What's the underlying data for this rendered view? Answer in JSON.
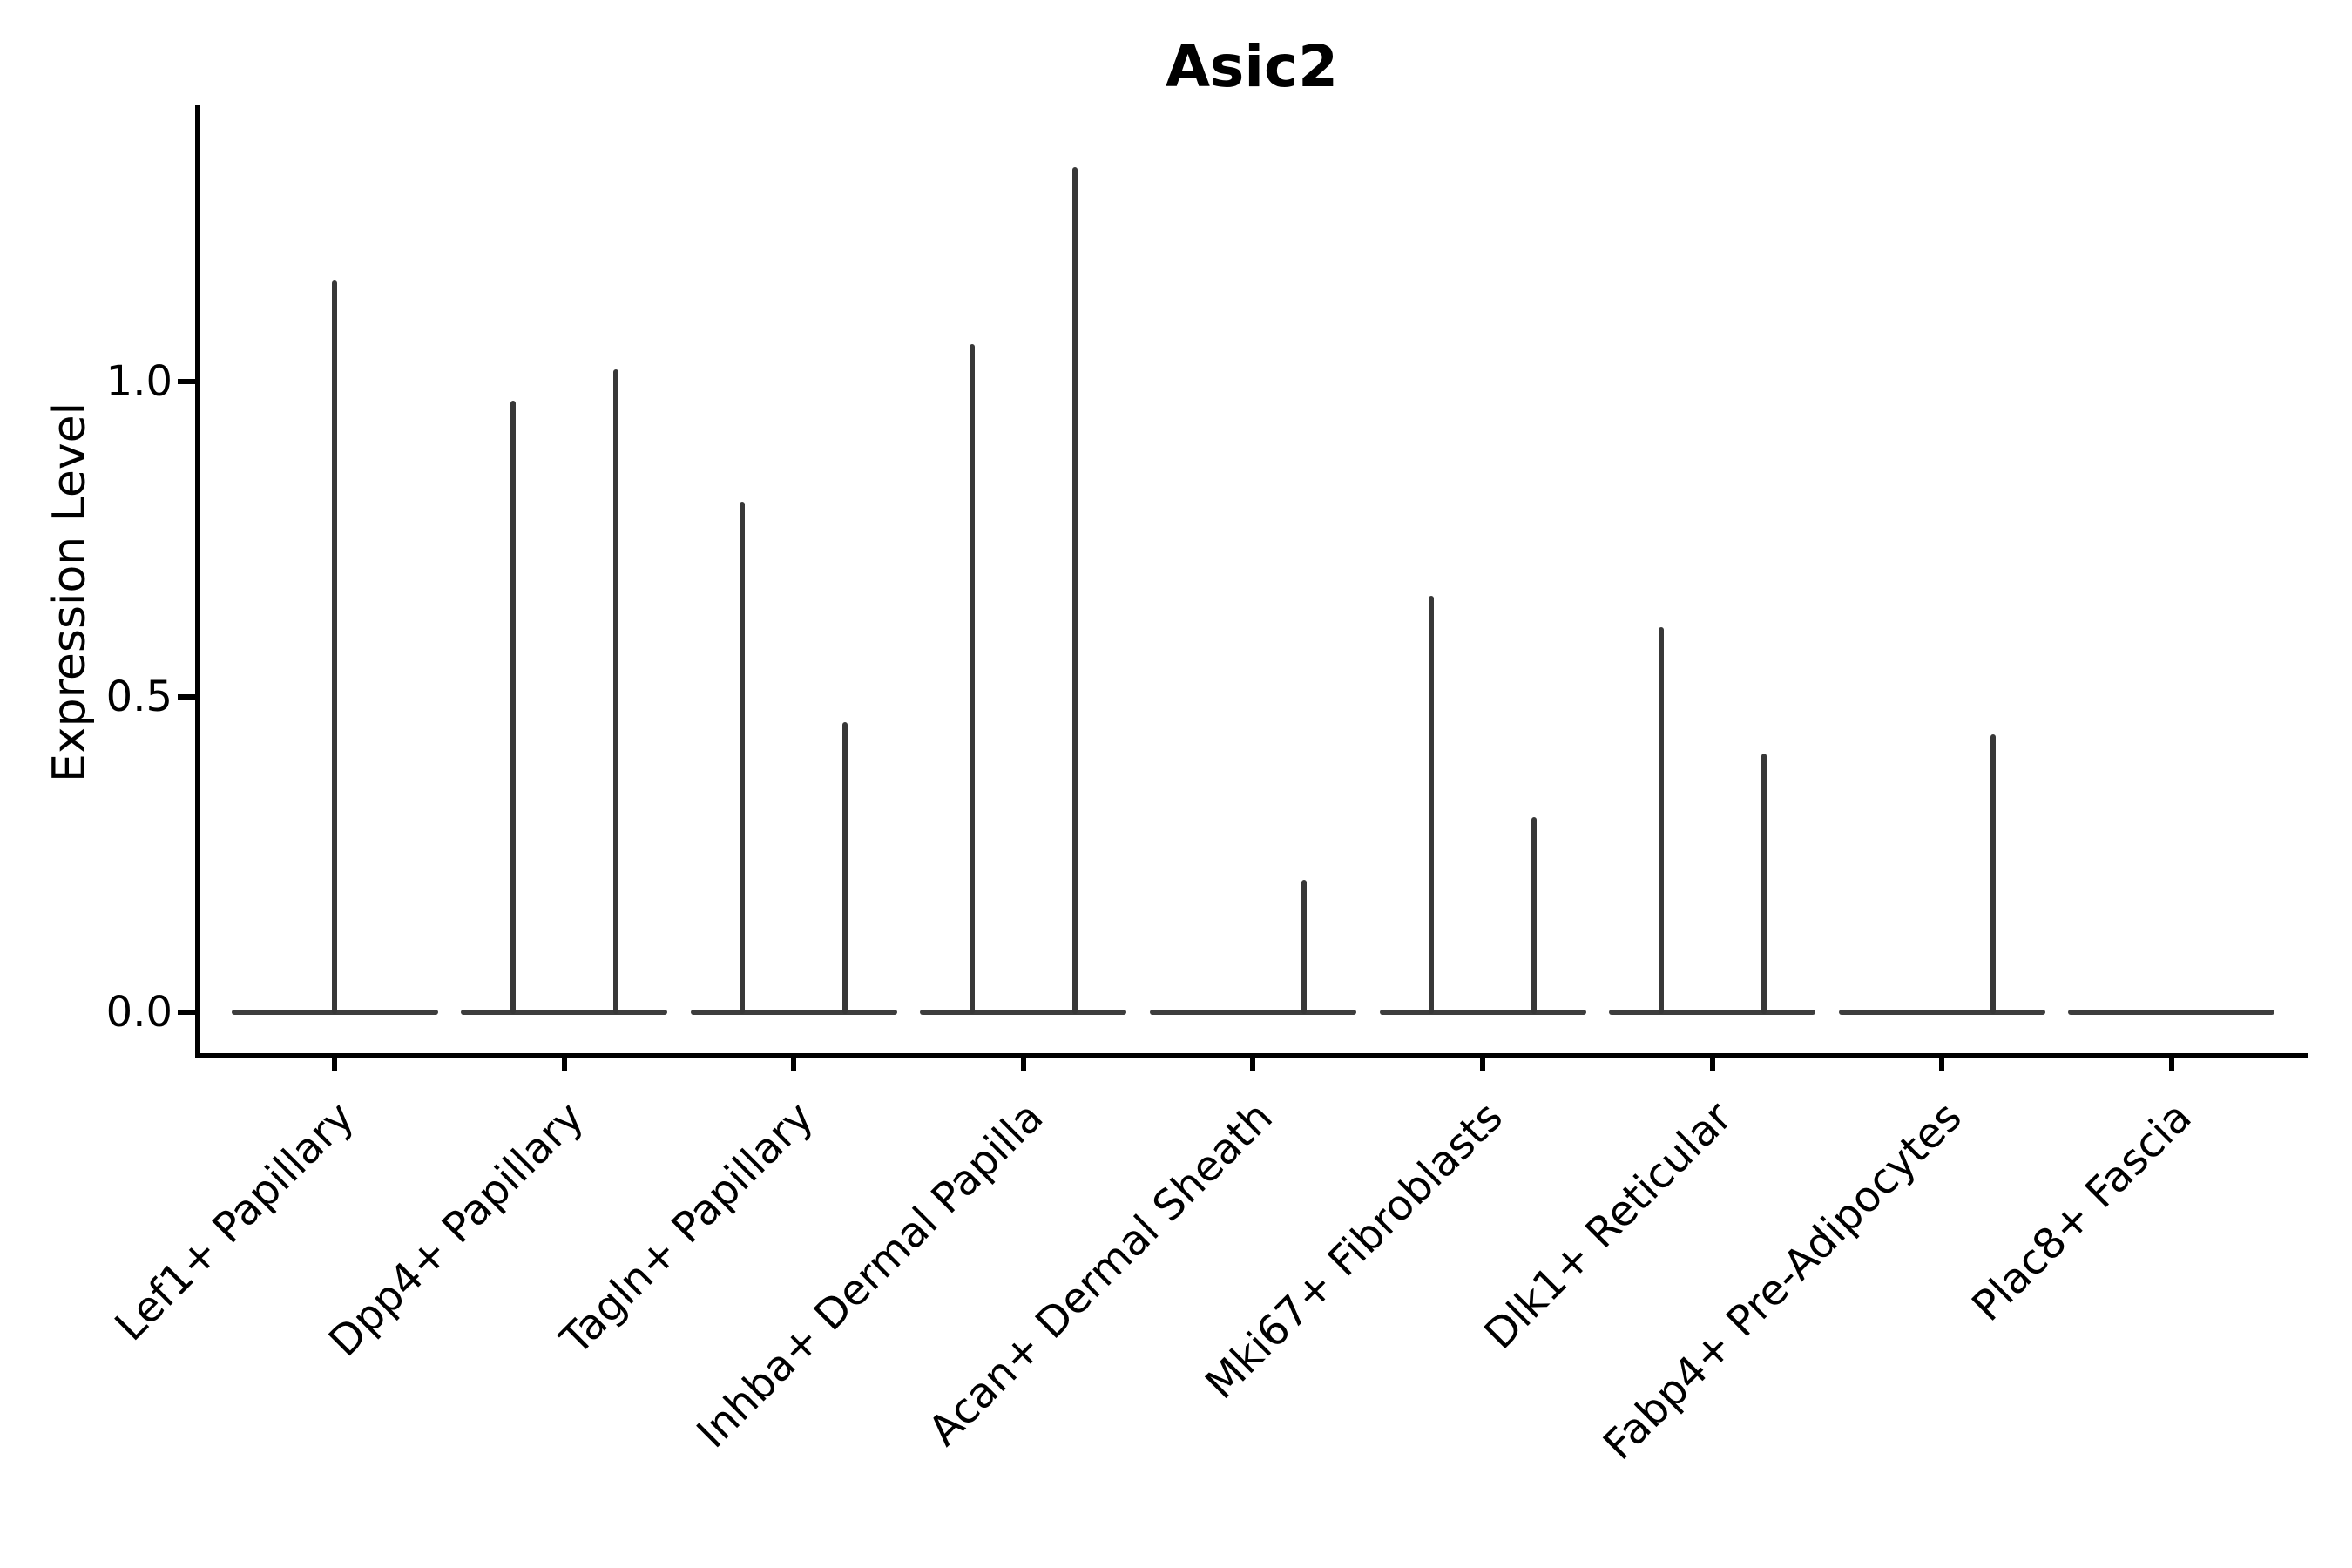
{
  "chart_data": {
    "type": "violin",
    "title": "Asic2",
    "ylabel": "Expression Level",
    "xlabel": "",
    "ylim": [
      0,
      1.44
    ],
    "grid": false,
    "legend_position": "none",
    "yticks": [
      {
        "value": 0.0,
        "label": "0.0"
      },
      {
        "value": 0.5,
        "label": "0.5"
      },
      {
        "value": 1.0,
        "label": "1.0"
      }
    ],
    "colors": {
      "spike": "#383838",
      "baseline": "#3d3d3d",
      "axis": "#000000"
    },
    "categories": [
      {
        "label": "Lef1+ Papillary",
        "violins": [
          {
            "pos": "center",
            "max": 1.16
          }
        ]
      },
      {
        "label": "Dpp4+ Papillary",
        "violins": [
          {
            "pos": "left",
            "max": 0.97
          },
          {
            "pos": "right",
            "max": 1.02
          }
        ]
      },
      {
        "label": "Tagln+ Papillary",
        "violins": [
          {
            "pos": "left",
            "max": 0.81
          },
          {
            "pos": "right",
            "max": 0.46
          }
        ]
      },
      {
        "label": "Inhba+ Dermal Papilla",
        "violins": [
          {
            "pos": "left",
            "max": 1.06
          },
          {
            "pos": "right",
            "max": 1.34
          }
        ]
      },
      {
        "label": "Acan+ Dermal Sheath",
        "violins": [
          {
            "pos": "right",
            "max": 0.21
          }
        ]
      },
      {
        "label": "Mki67+ Fibroblasts",
        "violins": [
          {
            "pos": "left",
            "max": 0.66
          },
          {
            "pos": "right",
            "max": 0.31
          }
        ]
      },
      {
        "label": "Dlk1+ Reticular",
        "violins": [
          {
            "pos": "left",
            "max": 0.61
          },
          {
            "pos": "right",
            "max": 0.41
          }
        ]
      },
      {
        "label": "Fabp4+ Pre-Adipocytes",
        "violins": [
          {
            "pos": "right",
            "max": 0.44
          }
        ]
      },
      {
        "label": "Plac8+ Fascia",
        "violins": []
      }
    ]
  }
}
